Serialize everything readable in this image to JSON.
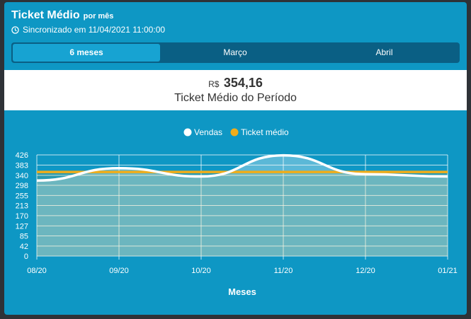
{
  "header": {
    "title": "Ticket Médio",
    "subtitle": "por mês",
    "sync_text": "Sincronizado em 11/04/2021 11:00:00"
  },
  "tabs": [
    {
      "label": "6 meses",
      "active": true
    },
    {
      "label": "Março",
      "active": false
    },
    {
      "label": "Abril",
      "active": false
    }
  ],
  "summary": {
    "currency": "R$",
    "amount": "354,16",
    "label": "Ticket Médio do Período"
  },
  "colors": {
    "card_bg": "#0e97c4",
    "tabs_bg": "#0a5f84",
    "tab_active": "#17a3d2",
    "vendas": "#ffffff",
    "ticket_medio": "#f0ad1a"
  },
  "chart_data": {
    "type": "area",
    "x": [
      "08/20",
      "09/20",
      "10/20",
      "11/20",
      "12/20",
      "01/21"
    ],
    "y_ticks": [
      0,
      42,
      85,
      127,
      170,
      213,
      255,
      298,
      340,
      383,
      426
    ],
    "ylim": [
      0,
      426
    ],
    "xlabel": "Meses",
    "ylabel": "",
    "legend_position": "top-center",
    "grid": true,
    "series": [
      {
        "name": "Vendas",
        "values": [
          318,
          370,
          335,
          424,
          345,
          335
        ],
        "color": "#ffffff"
      },
      {
        "name": "Ticket médio",
        "values": [
          354,
          354,
          354,
          354,
          354,
          354
        ],
        "color": "#f0ad1a"
      }
    ]
  }
}
